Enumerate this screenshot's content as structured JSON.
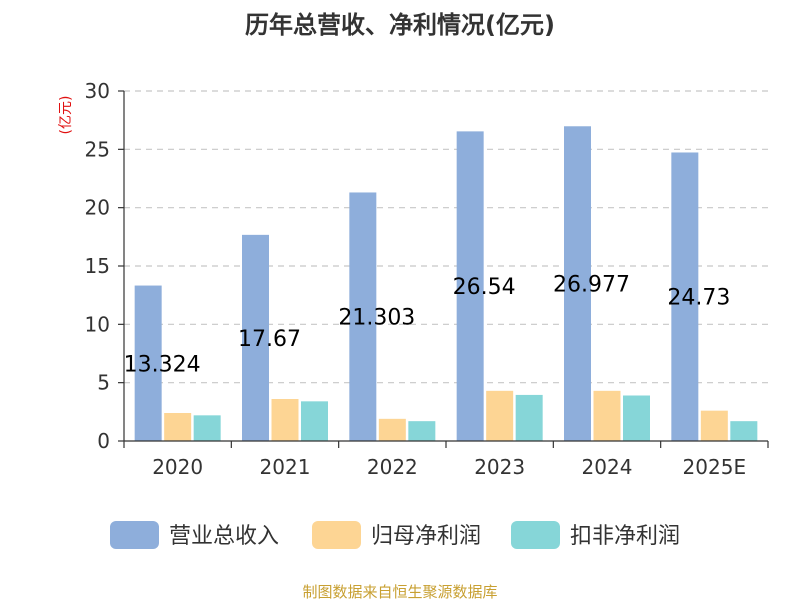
{
  "chart_data": {
    "type": "bar",
    "title": "历年总营收、净利情况(亿元)",
    "unit_label": "(亿元)",
    "categories": [
      "2020",
      "2021",
      "2022",
      "2023",
      "2024",
      "2025E"
    ],
    "ylim": [
      0,
      30
    ],
    "yticks": [
      0,
      5,
      10,
      15,
      20,
      25,
      30
    ],
    "grid": true,
    "legend_position": "bottom",
    "series": [
      {
        "name": "营业总收入",
        "color": "#8eaedb",
        "values": [
          13.324,
          17.67,
          21.303,
          26.54,
          26.977,
          24.73
        ],
        "data_labels": [
          "13.324",
          "17.67",
          "21.303",
          "26.54",
          "26.977",
          "24.73"
        ]
      },
      {
        "name": "归母净利润",
        "color": "#fdd594",
        "values": [
          2.4,
          3.6,
          1.9,
          4.3,
          4.3,
          2.6
        ]
      },
      {
        "name": "扣非净利润",
        "color": "#86d6d8",
        "values": [
          2.2,
          3.4,
          1.7,
          3.95,
          3.9,
          1.7
        ]
      }
    ],
    "source": "制图数据来自恒生聚源数据库"
  }
}
